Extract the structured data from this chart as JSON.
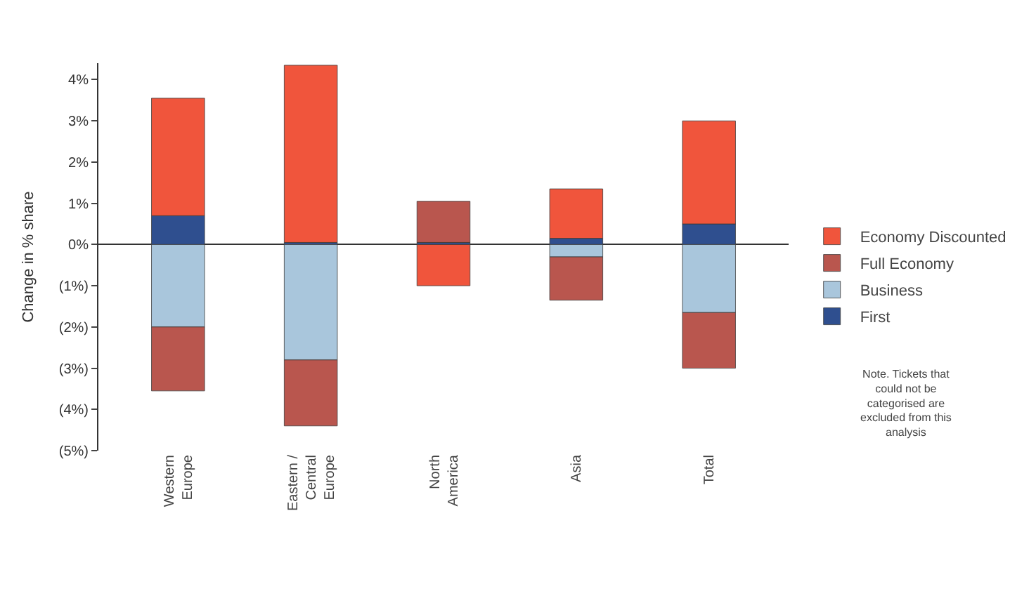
{
  "chart_data": {
    "type": "bar",
    "stacked": true,
    "ylabel": "Change in % share",
    "categories": [
      "Western\nEurope",
      "Eastern /\nCentral\nEurope",
      "North\nAmerica",
      "Asia",
      "Total"
    ],
    "series": [
      {
        "name": "First",
        "color": "#2f4f8f",
        "values": [
          0.7,
          0.05,
          0.05,
          0.15,
          0.5
        ]
      },
      {
        "name": "Business",
        "color": "#a9c6dc",
        "values": [
          -2.0,
          -2.8,
          0,
          -0.3,
          -1.65
        ]
      },
      {
        "name": "Full Economy",
        "color": "#b9564e",
        "values": [
          -1.55,
          -1.6,
          1.0,
          -1.05,
          -1.35
        ]
      },
      {
        "name": "Economy Discounted",
        "color": "#f0553c",
        "values": [
          2.85,
          4.3,
          -1.0,
          1.2,
          2.5
        ]
      }
    ],
    "ylim": [
      -5,
      4.4
    ],
    "yticks": [
      {
        "value": -5,
        "label": "(5%)"
      },
      {
        "value": -4,
        "label": "(4%)"
      },
      {
        "value": -3,
        "label": "(3%)"
      },
      {
        "value": -2,
        "label": "(2%)"
      },
      {
        "value": -1,
        "label": "(1%)"
      },
      {
        "value": 0,
        "label": "0%"
      },
      {
        "value": 1,
        "label": "1%"
      },
      {
        "value": 2,
        "label": "2%"
      },
      {
        "value": 3,
        "label": "3%"
      },
      {
        "value": 4,
        "label": "4%"
      }
    ],
    "legend": "right",
    "annotations": [
      "Note. Tickets that\ncould not be\ncategorised are\nexcluded from this\nanalysis"
    ]
  }
}
